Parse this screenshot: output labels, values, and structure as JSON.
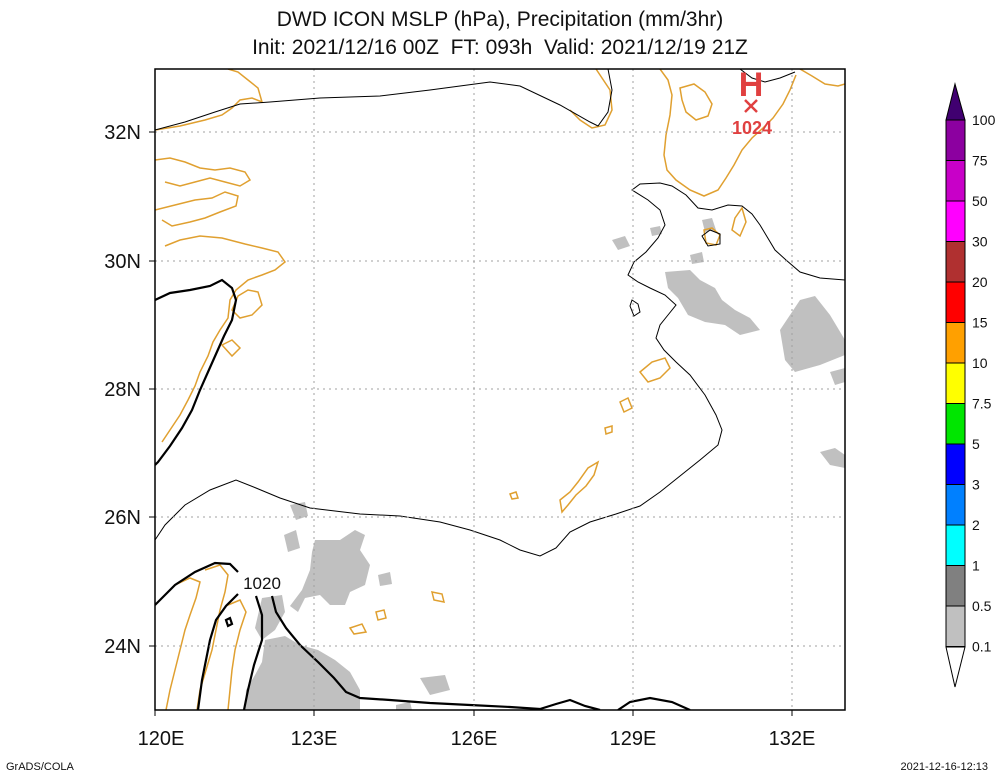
{
  "title": {
    "line1": "DWD ICON MSLP (hPa), Precipitation (mm/3hr)",
    "line2": "Init: 2021/12/16 00Z  FT: 093h  Valid: 2021/12/19 21Z"
  },
  "axes": {
    "lon_labels": [
      "120E",
      "123E",
      "126E",
      "129E",
      "132E"
    ],
    "lat_labels": [
      "32N",
      "30N",
      "28N",
      "26N",
      "24N"
    ]
  },
  "pressure_labels": {
    "isobar": "1020",
    "high_marker": "H",
    "high_value": "1024"
  },
  "legend": {
    "values": [
      "100",
      "75",
      "50",
      "30",
      "20",
      "15",
      "10",
      "7.5",
      "5",
      "3",
      "2",
      "1",
      "0.5",
      "0.1"
    ],
    "colors": [
      "#8c00a0",
      "#c800c8",
      "#ff00ff",
      "#b03030",
      "#ff0000",
      "#ffa000",
      "#ffff00",
      "#00e600",
      "#0000ff",
      "#0080ff",
      "#00ffff",
      "#808080",
      "#c0c0c0"
    ],
    "top_color": "#400070"
  },
  "colors": {
    "coast": "#e0a030",
    "precip_light": "#c0c0c0",
    "high": "#e04040"
  },
  "footer": {
    "left": "GrADS/COLA",
    "right": "2021-12-16-12:13"
  }
}
